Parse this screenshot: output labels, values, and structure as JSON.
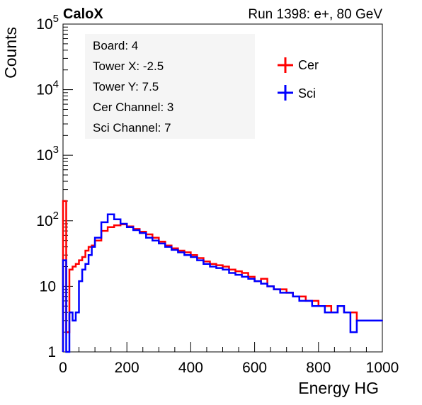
{
  "chart_data": {
    "type": "histogram-step",
    "title_left": "CaloX",
    "title_right": "Run 1398: e+, 80 GeV",
    "xlabel": "Energy HG",
    "ylabel": "Counts",
    "xlim": [
      0,
      1000
    ],
    "ylim": [
      1,
      100000
    ],
    "y_scale": "log",
    "x_ticks": [
      "0",
      "200",
      "400",
      "600",
      "800",
      "1000"
    ],
    "y_ticks": [
      {
        "base": "1",
        "exp": ""
      },
      {
        "base": "10",
        "exp": ""
      },
      {
        "base": "10",
        "exp": "2"
      },
      {
        "base": "10",
        "exp": "3"
      },
      {
        "base": "10",
        "exp": "4"
      },
      {
        "base": "10",
        "exp": "5"
      }
    ],
    "info_box": [
      "Board: 4",
      "Tower X: -2.5",
      "Tower Y: 7.5",
      "Cer Channel: 3",
      "Sci Channel: 7"
    ],
    "legend_placement": "top-right",
    "series": [
      {
        "name": "Cer",
        "color": "#ff0000",
        "x": [
          0,
          10,
          20,
          30,
          40,
          50,
          60,
          70,
          80,
          90,
          100,
          120,
          140,
          160,
          180,
          200,
          220,
          240,
          260,
          280,
          300,
          320,
          340,
          360,
          380,
          400,
          420,
          440,
          460,
          480,
          500,
          520,
          540,
          560,
          580,
          600,
          620,
          640,
          660,
          680,
          700,
          720,
          740,
          760,
          780,
          800,
          820,
          840,
          860,
          880,
          900,
          920,
          940,
          960,
          980,
          1000
        ],
        "values": [
          200,
          2,
          18,
          20,
          22,
          25,
          28,
          35,
          40,
          42,
          50,
          70,
          80,
          85,
          88,
          82,
          75,
          68,
          62,
          55,
          48,
          42,
          38,
          35,
          33,
          30,
          27,
          24,
          22,
          21,
          20,
          18,
          17,
          16,
          14,
          12,
          13,
          10,
          9,
          9,
          8,
          7,
          7,
          6,
          6,
          5,
          5,
          4,
          5,
          4,
          4,
          3,
          3,
          3,
          3,
          3
        ]
      },
      {
        "name": "Sci",
        "color": "#0000ff",
        "x": [
          0,
          10,
          20,
          30,
          40,
          50,
          60,
          70,
          80,
          90,
          100,
          120,
          140,
          160,
          180,
          200,
          220,
          240,
          260,
          280,
          300,
          320,
          340,
          360,
          380,
          400,
          420,
          440,
          460,
          480,
          500,
          520,
          540,
          560,
          580,
          600,
          620,
          640,
          660,
          680,
          700,
          720,
          740,
          760,
          780,
          800,
          820,
          840,
          860,
          880,
          900,
          920,
          940,
          960,
          980,
          1000
        ],
        "values": [
          25,
          1,
          4,
          3,
          4,
          12,
          18,
          22,
          30,
          40,
          55,
          95,
          125,
          105,
          90,
          80,
          72,
          65,
          55,
          50,
          45,
          40,
          36,
          33,
          30,
          28,
          25,
          22,
          20,
          19,
          18,
          16,
          15,
          14,
          13,
          12,
          11,
          10,
          9,
          8,
          8,
          7,
          6,
          6,
          5,
          5,
          4,
          4,
          5,
          4,
          2,
          3,
          3,
          3,
          3,
          3
        ]
      }
    ]
  }
}
